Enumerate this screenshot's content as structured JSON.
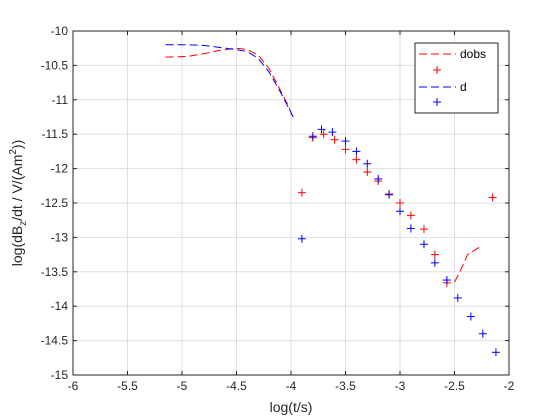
{
  "chart_data": {
    "type": "line",
    "title": "",
    "xlabel": "log(t/s)",
    "ylabel_parts": [
      "log(dB",
      "z",
      "/dt / V/(Am",
      "2",
      "))"
    ],
    "xlim": [
      -6,
      -2
    ],
    "ylim": [
      -15,
      -10
    ],
    "xticks": [
      -6,
      -5.5,
      -5,
      -4.5,
      -4,
      -3.5,
      -3,
      -2.5,
      -2
    ],
    "yticks": [
      -15,
      -14.5,
      -14,
      -13.5,
      -13,
      -12.5,
      -12,
      -11.5,
      -11,
      -10.5,
      -10
    ],
    "xtick_labels": [
      "-6",
      "-5.5",
      "-5",
      "-4.5",
      "-4",
      "-3.5",
      "-3",
      "-2.5",
      "-2"
    ],
    "ytick_labels": [
      "-15",
      "-14.5",
      "-14",
      "-13.5",
      "-13",
      "-12.5",
      "-12",
      "-11.5",
      "-11",
      "-10.5",
      "-10"
    ],
    "grid": true,
    "legend_position": "top-right",
    "series": [
      {
        "name": "dobs",
        "style": "dashed-line",
        "color": "#ff0000",
        "segments": [
          [
            [
              -5.15,
              -10.38
            ],
            [
              -4.95,
              -10.37
            ],
            [
              -4.8,
              -10.33
            ],
            [
              -4.65,
              -10.28
            ],
            [
              -4.5,
              -10.25
            ],
            [
              -4.4,
              -10.27
            ],
            [
              -4.3,
              -10.35
            ],
            [
              -4.2,
              -10.55
            ],
            [
              -4.1,
              -10.85
            ],
            [
              -4.02,
              -11.1
            ],
            [
              -3.98,
              -11.28
            ]
          ],
          [
            [
              -2.5,
              -13.65
            ],
            [
              -2.45,
              -13.5
            ],
            [
              -2.38,
              -13.25
            ],
            [
              -2.25,
              -13.12
            ]
          ]
        ]
      },
      {
        "name": "",
        "style": "plus-marker",
        "color": "#ff0000",
        "points": [
          [
            -3.9,
            -12.35
          ],
          [
            -3.8,
            -11.55
          ],
          [
            -3.7,
            -11.5
          ],
          [
            -3.6,
            -11.58
          ],
          [
            -3.5,
            -11.72
          ],
          [
            -3.4,
            -11.87
          ],
          [
            -3.3,
            -12.05
          ],
          [
            -3.2,
            -12.18
          ],
          [
            -3.1,
            -12.37
          ],
          [
            -3.0,
            -12.5
          ],
          [
            -2.9,
            -12.68
          ],
          [
            -2.78,
            -12.88
          ],
          [
            -2.68,
            -13.25
          ],
          [
            -2.57,
            -13.66
          ],
          [
            -2.15,
            -12.42
          ]
        ]
      },
      {
        "name": "d",
        "style": "dashed-line",
        "color": "#0000ff",
        "segments": [
          [
            [
              -5.15,
              -10.2
            ],
            [
              -4.95,
              -10.2
            ],
            [
              -4.8,
              -10.21
            ],
            [
              -4.65,
              -10.24
            ],
            [
              -4.5,
              -10.27
            ],
            [
              -4.4,
              -10.3
            ],
            [
              -4.3,
              -10.4
            ],
            [
              -4.2,
              -10.6
            ],
            [
              -4.1,
              -10.88
            ],
            [
              -4.02,
              -11.12
            ],
            [
              -3.98,
              -11.25
            ]
          ]
        ]
      },
      {
        "name": "",
        "style": "plus-marker",
        "color": "#0000ff",
        "points": [
          [
            -3.9,
            -13.02
          ],
          [
            -3.8,
            -11.53
          ],
          [
            -3.72,
            -11.43
          ],
          [
            -3.62,
            -11.47
          ],
          [
            -3.5,
            -11.6
          ],
          [
            -3.4,
            -11.75
          ],
          [
            -3.3,
            -11.93
          ],
          [
            -3.2,
            -12.15
          ],
          [
            -3.1,
            -12.38
          ],
          [
            -3.0,
            -12.62
          ],
          [
            -2.9,
            -12.87
          ],
          [
            -2.78,
            -13.1
          ],
          [
            -2.68,
            -13.37
          ],
          [
            -2.57,
            -13.62
          ],
          [
            -2.47,
            -13.88
          ],
          [
            -2.35,
            -14.15
          ],
          [
            -2.24,
            -14.4
          ],
          [
            -2.12,
            -14.67
          ]
        ]
      }
    ],
    "legend_entries": [
      {
        "label": "dobs",
        "style": "dashed-line",
        "color": "#ff0000"
      },
      {
        "label": "",
        "style": "plus-marker",
        "color": "#ff0000"
      },
      {
        "label": "d",
        "style": "dashed-line",
        "color": "#0000ff"
      },
      {
        "label": "",
        "style": "plus-marker",
        "color": "#0000ff"
      }
    ]
  }
}
